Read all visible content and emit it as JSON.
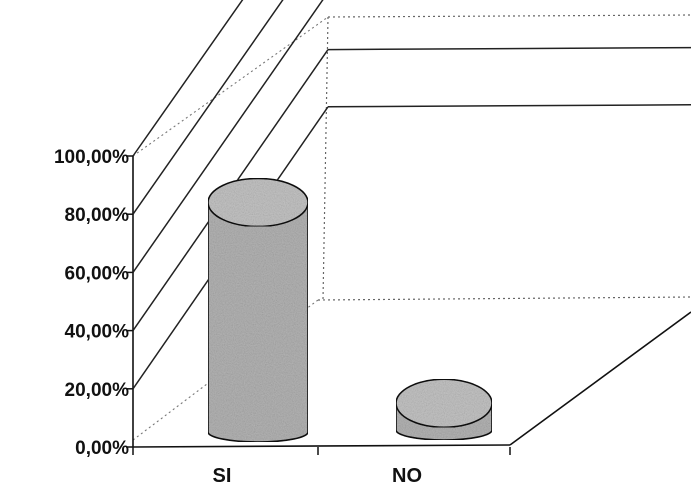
{
  "chart_data": {
    "type": "bar",
    "style": "3d-cylinder",
    "categories": [
      "SI",
      "NO"
    ],
    "values": [
      83,
      14
    ],
    "ylim": [
      0,
      100
    ],
    "y_ticks": [
      "0,00%",
      "20,00%",
      "40,00%",
      "60,00%",
      "80,00%",
      "100,00%"
    ],
    "grid": true,
    "legend": "none",
    "colors": {
      "bar_fill": "#b4b4b4",
      "bar_top": "#c4c4c4",
      "line": "#111111",
      "grid": "#222222"
    }
  }
}
